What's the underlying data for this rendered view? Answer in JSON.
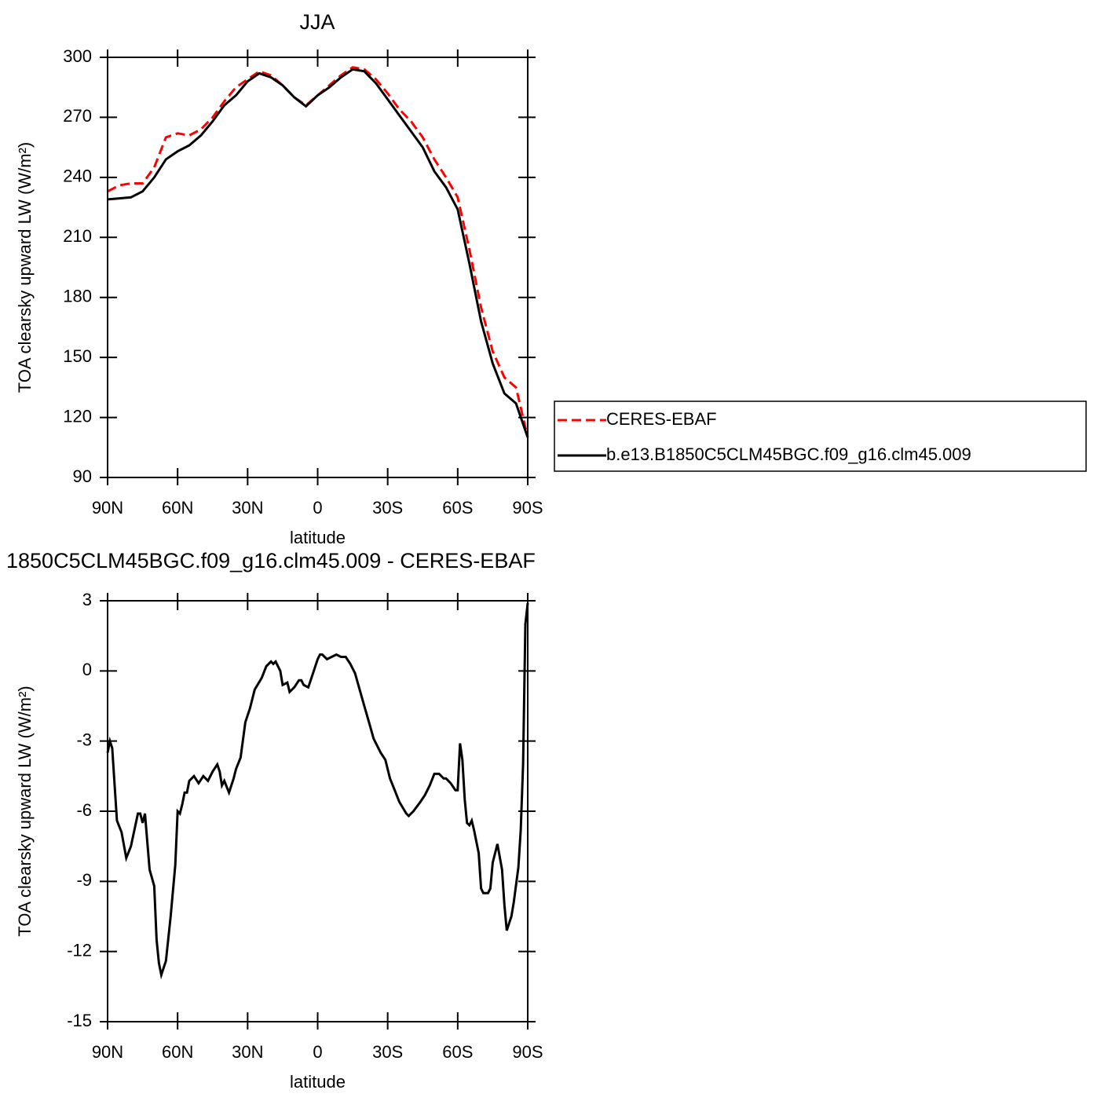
{
  "chart_data": [
    {
      "type": "line",
      "title": "JJA",
      "xlabel": "latitude",
      "ylabel": "TOA clearsky upward LW (W/m²)",
      "x": [
        90,
        85,
        80,
        75,
        70,
        65,
        60,
        55,
        50,
        45,
        40,
        35,
        30,
        25,
        20,
        15,
        10,
        5,
        0,
        -5,
        -10,
        -15,
        -20,
        -25,
        -30,
        -35,
        -40,
        -45,
        -50,
        -55,
        -60,
        -65,
        -70,
        -75,
        -80,
        -85,
        -90
      ],
      "series": [
        {
          "name": "CERES-EBAF",
          "color": "#ff0000",
          "linestyle": "dashed",
          "values": [
            233,
            236,
            237,
            237,
            245,
            260,
            262,
            261,
            264,
            270,
            278,
            285,
            289,
            293,
            291,
            286,
            280,
            276,
            281,
            286,
            291,
            295,
            294,
            289,
            282,
            274,
            268,
            260,
            249,
            240,
            230,
            204,
            175,
            153,
            140,
            135,
            110
          ]
        },
        {
          "name": "b.e13.B1850C5CLM45BGC.f09_g16.clm45.009",
          "color": "#000000",
          "linestyle": "solid",
          "values": [
            229,
            229.5,
            230,
            233,
            240,
            249,
            253,
            256,
            261,
            268,
            276,
            281,
            288,
            292,
            290,
            286,
            280,
            275.5,
            281,
            285,
            290,
            294,
            293,
            287,
            279,
            271,
            263,
            255,
            243,
            235,
            224,
            197,
            168,
            147,
            132,
            127,
            110
          ]
        }
      ],
      "xlim": [
        90,
        -90
      ],
      "ylim": [
        90,
        300
      ],
      "xticks": [
        {
          "value": 90,
          "label": "90N"
        },
        {
          "value": 60,
          "label": "60N"
        },
        {
          "value": 30,
          "label": "30N"
        },
        0,
        {
          "value": -30,
          "label": "30S"
        },
        {
          "value": -60,
          "label": "60S"
        },
        {
          "value": -90,
          "label": "90S"
        }
      ],
      "yticks": [
        90,
        120,
        150,
        180,
        210,
        240,
        270,
        300
      ],
      "legend": "right"
    },
    {
      "type": "line",
      "title": "1850C5CLM45BGC.f09_g16.clm45.009 - CERES-EBAF",
      "xlabel": "latitude",
      "ylabel": "TOA clearsky upward LW (W/m²)",
      "x": [
        90,
        89,
        88,
        86,
        84,
        82,
        80,
        77,
        76,
        75,
        74,
        72,
        70,
        69,
        68,
        67,
        65,
        63,
        61,
        60,
        59,
        58,
        57,
        56,
        55,
        53,
        51,
        49,
        47,
        45,
        43,
        42,
        41,
        40,
        38,
        36,
        35,
        33,
        31,
        29,
        27,
        24,
        22,
        20,
        19,
        18,
        16,
        15,
        13,
        12,
        10,
        8,
        7,
        6,
        4,
        2,
        0,
        -1,
        -2,
        -4,
        -6,
        -8,
        -10,
        -12,
        -14,
        -16,
        -18,
        -20,
        -22,
        -24,
        -27,
        -29,
        -31,
        -33,
        -35,
        -38,
        -39,
        -41,
        -44,
        -46,
        -48,
        -50,
        -52,
        -54,
        -55,
        -57,
        -59,
        -60,
        -61,
        -62,
        -63,
        -64,
        -65,
        -66,
        -67,
        -69,
        -70,
        -71,
        -73,
        -74,
        -75,
        -77,
        -79,
        -80,
        -81,
        -82,
        -83,
        -84,
        -86,
        -87,
        -88,
        -89,
        -90
      ],
      "series": [
        {
          "color": "#000000",
          "linestyle": "solid",
          "values": [
            -3.5,
            -3.0,
            -3.3,
            -6.4,
            -6.9,
            -8.0,
            -7.5,
            -6.1,
            -6.1,
            -6.5,
            -6.1,
            -8.5,
            -9.2,
            -11.5,
            -12.5,
            -13.0,
            -12.4,
            -10.5,
            -8.3,
            -6.0,
            -6.1,
            -5.7,
            -5.2,
            -5.2,
            -4.7,
            -4.5,
            -4.8,
            -4.5,
            -4.7,
            -4.3,
            -4.0,
            -4.3,
            -4.9,
            -4.7,
            -5.2,
            -4.6,
            -4.2,
            -3.7,
            -2.2,
            -1.6,
            -0.8,
            -0.3,
            0.2,
            0.4,
            0.3,
            0.4,
            0.0,
            -0.6,
            -0.5,
            -0.9,
            -0.7,
            -0.4,
            -0.4,
            -0.6,
            -0.7,
            -0.1,
            0.5,
            0.7,
            0.7,
            0.5,
            0.6,
            0.7,
            0.6,
            0.6,
            0.3,
            -0.1,
            -0.8,
            -1.5,
            -2.2,
            -2.9,
            -3.5,
            -3.8,
            -4.6,
            -5.1,
            -5.6,
            -6.1,
            -6.2,
            -6.0,
            -5.6,
            -5.3,
            -4.9,
            -4.4,
            -4.4,
            -4.6,
            -4.6,
            -4.8,
            -5.1,
            -5.1,
            -3.1,
            -3.8,
            -5.5,
            -6.5,
            -6.6,
            -6.4,
            -6.8,
            -7.8,
            -9.3,
            -9.5,
            -9.5,
            -9.3,
            -8.2,
            -7.4,
            -8.5,
            -10.0,
            -11.1,
            -10.8,
            -10.5,
            -9.9,
            -8.4,
            -6.8,
            -4.0,
            2.0,
            2.9
          ]
        }
      ],
      "xlim": [
        90,
        -90
      ],
      "ylim": [
        -15,
        3
      ],
      "xticks": [
        {
          "value": 90,
          "label": "90N"
        },
        {
          "value": 60,
          "label": "60N"
        },
        {
          "value": 30,
          "label": "30N"
        },
        0,
        {
          "value": -30,
          "label": "30S"
        },
        {
          "value": -60,
          "label": "60S"
        },
        {
          "value": -90,
          "label": "90S"
        }
      ],
      "yticks": [
        -15,
        -12,
        -9,
        -6,
        -3,
        0,
        3
      ]
    }
  ]
}
